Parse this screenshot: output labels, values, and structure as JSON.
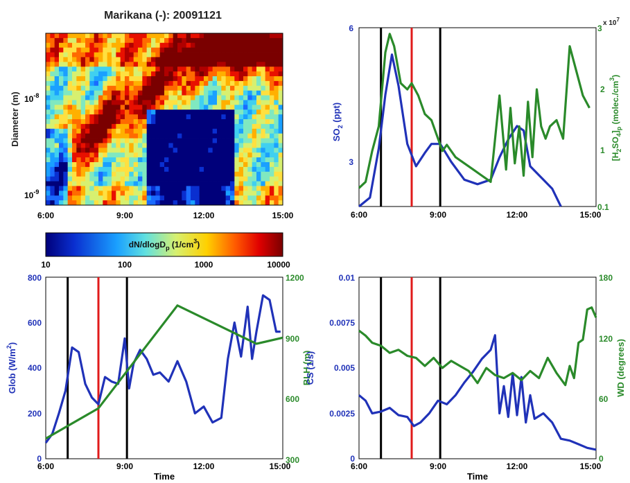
{
  "colors": {
    "blue": "#2032b8",
    "green": "#2a8a2a",
    "red": "#e01a1a",
    "black": "#000000"
  },
  "chart_data": [
    {
      "type": "heatmap",
      "title": "Marikana (-): 20091121",
      "ylabel": "Diameter (m)",
      "y_scale": "log",
      "y_ticks": [
        {
          "value": 1e-08,
          "label": "10",
          "exp": "-8"
        },
        {
          "value": 1e-09,
          "label": "10",
          "exp": "-9"
        }
      ],
      "x_ticks": [
        "6:00",
        "9:00",
        "12:00",
        "15:00"
      ],
      "colorbar": {
        "label_main": "dN/dlogD",
        "label_sub": "p",
        "label_unit": " (1/cm",
        "label_sup": "3",
        "label_end": ")",
        "scale": "log",
        "ticks": [
          "10",
          "100",
          "1000",
          "10000"
        ]
      }
    },
    {
      "type": "line",
      "left_axis": {
        "label": "SO",
        "sub": "2",
        "unit": " (ppt)",
        "ticks": [
          "6",
          "3"
        ],
        "range": [
          2,
          6
        ]
      },
      "right_axis": {
        "label_parts": [
          "[H",
          "2",
          "SO",
          "4",
          "]",
          "p",
          " (molec./cm",
          "3",
          ")"
        ],
        "ticks": [
          "0.1",
          "1",
          "2",
          "3"
        ],
        "multiplier": "x 10",
        "multiplier_exp": "7",
        "range": [
          0.1,
          3
        ]
      },
      "x_ticks": [
        "6:00",
        "9:00",
        "12:00",
        "15:00"
      ],
      "vlines": {
        "black": [
          "6:50",
          "9:05"
        ],
        "red": [
          "8:00"
        ]
      },
      "series": [
        {
          "axis": "left",
          "color": "blue",
          "x": [
            "6:00",
            "6:25",
            "6:45",
            "7:00",
            "7:15",
            "7:30",
            "7:50",
            "8:10",
            "8:30",
            "8:45",
            "9:05",
            "9:30",
            "10:00",
            "10:30",
            "11:00",
            "11:20",
            "11:40",
            "12:00",
            "12:15",
            "12:30",
            "13:00",
            "13:20",
            "13:40"
          ],
          "values": [
            2.0,
            2.2,
            3.3,
            4.5,
            5.4,
            4.7,
            3.4,
            2.9,
            3.2,
            3.4,
            3.4,
            3.0,
            2.6,
            2.5,
            2.6,
            3.1,
            3.5,
            3.8,
            3.7,
            2.9,
            2.6,
            2.4,
            2.0
          ]
        },
        {
          "axis": "right",
          "color": "green",
          "x": [
            "6:00",
            "6:15",
            "6:30",
            "6:45",
            "7:00",
            "7:10",
            "7:20",
            "7:35",
            "7:50",
            "8:00",
            "8:15",
            "8:30",
            "8:45",
            "9:00",
            "9:10",
            "9:20",
            "9:40",
            "10:00",
            "10:20",
            "10:40",
            "11:00",
            "11:20",
            "11:30",
            "11:35",
            "11:45",
            "11:55",
            "12:05",
            "12:15",
            "12:25",
            "12:35",
            "12:45",
            "12:55",
            "13:05",
            "13:15",
            "13:30",
            "13:45",
            "14:00",
            "14:15",
            "14:30",
            "14:45"
          ],
          "values": [
            0.4,
            0.5,
            1.0,
            1.4,
            2.6,
            2.9,
            2.7,
            2.1,
            2.0,
            2.1,
            1.9,
            1.6,
            1.5,
            1.2,
            1.0,
            1.1,
            0.9,
            0.8,
            0.7,
            0.6,
            0.5,
            1.9,
            1.1,
            0.7,
            1.7,
            0.8,
            1.4,
            0.6,
            1.8,
            0.9,
            2.0,
            1.4,
            1.2,
            1.4,
            1.5,
            1.2,
            2.7,
            2.3,
            1.9,
            1.7
          ]
        }
      ]
    },
    {
      "type": "line",
      "xlabel": "Time",
      "left_axis": {
        "label": "Glob (W/m",
        "sup": "2",
        "end": ")",
        "ticks": [
          "0",
          "200",
          "400",
          "600",
          "800"
        ],
        "range": [
          0,
          800
        ]
      },
      "right_axis": {
        "label": "BLH (m)",
        "ticks": [
          "300",
          "600",
          "900",
          "1200"
        ],
        "range": [
          300,
          1200
        ]
      },
      "x_ticks": [
        "6:00",
        "9:00",
        "12:00",
        "15:00"
      ],
      "vlines": {
        "black": [
          "6:50",
          "9:05"
        ],
        "red": [
          "8:00"
        ]
      },
      "series": [
        {
          "axis": "left",
          "color": "blue",
          "x": [
            "6:00",
            "6:15",
            "6:30",
            "6:45",
            "7:00",
            "7:15",
            "7:30",
            "7:45",
            "8:00",
            "8:15",
            "8:30",
            "8:45",
            "9:00",
            "9:10",
            "9:20",
            "9:35",
            "9:50",
            "10:05",
            "10:20",
            "10:40",
            "11:00",
            "11:20",
            "11:40",
            "12:00",
            "12:20",
            "12:40",
            "12:55",
            "13:10",
            "13:25",
            "13:40",
            "13:50",
            "14:00",
            "14:15",
            "14:30",
            "14:45",
            "14:55"
          ],
          "values": [
            70,
            110,
            200,
            300,
            490,
            470,
            330,
            270,
            240,
            360,
            340,
            330,
            530,
            310,
            420,
            480,
            440,
            370,
            380,
            340,
            430,
            340,
            200,
            230,
            160,
            180,
            440,
            600,
            450,
            670,
            440,
            560,
            720,
            700,
            560,
            560
          ]
        },
        {
          "axis": "right",
          "color": "green",
          "x": [
            "6:00",
            "8:00",
            "11:00",
            "14:00",
            "15:00"
          ],
          "values": [
            400,
            550,
            1060,
            870,
            900
          ]
        }
      ]
    },
    {
      "type": "line",
      "xlabel": "Time",
      "left_axis": {
        "label": "CS (1/s)",
        "ticks": [
          "0",
          "0.0025",
          "0.005",
          "0.0075",
          "0.01"
        ],
        "range": [
          0,
          0.01
        ]
      },
      "right_axis": {
        "label": "WD (degrees)",
        "ticks": [
          "0",
          "60",
          "120",
          "180"
        ],
        "range": [
          0,
          180
        ]
      },
      "x_ticks": [
        "6:00",
        "9:00",
        "12:00",
        "15:00"
      ],
      "vlines": {
        "black": [
          "6:50",
          "9:05"
        ],
        "red": [
          "8:00"
        ]
      },
      "series": [
        {
          "axis": "left",
          "color": "blue",
          "x": [
            "6:00",
            "6:15",
            "6:30",
            "6:50",
            "7:10",
            "7:30",
            "7:50",
            "8:05",
            "8:20",
            "8:40",
            "9:00",
            "9:20",
            "9:40",
            "10:00",
            "10:20",
            "10:40",
            "11:00",
            "11:10",
            "11:20",
            "11:30",
            "11:40",
            "11:50",
            "12:00",
            "12:10",
            "12:20",
            "12:30",
            "12:40",
            "13:00",
            "13:20",
            "13:40",
            "14:00",
            "14:20",
            "14:40",
            "15:00"
          ],
          "values": [
            0.0035,
            0.0032,
            0.0025,
            0.0026,
            0.0028,
            0.0024,
            0.0023,
            0.0018,
            0.002,
            0.0025,
            0.0032,
            0.003,
            0.0035,
            0.0042,
            0.0048,
            0.0055,
            0.006,
            0.0068,
            0.0025,
            0.004,
            0.0023,
            0.0047,
            0.0024,
            0.0045,
            0.002,
            0.0035,
            0.0022,
            0.0025,
            0.002,
            0.0011,
            0.001,
            0.0008,
            0.0006,
            0.0005
          ]
        },
        {
          "axis": "right",
          "color": "green",
          "x": [
            "6:00",
            "6:15",
            "6:30",
            "6:50",
            "7:10",
            "7:30",
            "7:50",
            "8:10",
            "8:30",
            "8:50",
            "9:10",
            "9:30",
            "9:50",
            "10:10",
            "10:30",
            "10:50",
            "11:10",
            "11:30",
            "11:50",
            "12:10",
            "12:30",
            "12:50",
            "13:10",
            "13:30",
            "13:50",
            "14:00",
            "14:10",
            "14:20",
            "14:30",
            "14:40",
            "14:50",
            "15:00"
          ],
          "values": [
            127,
            122,
            115,
            112,
            105,
            108,
            102,
            100,
            92,
            100,
            90,
            97,
            92,
            87,
            75,
            90,
            83,
            80,
            85,
            78,
            87,
            80,
            100,
            85,
            73,
            92,
            80,
            115,
            118,
            148,
            150,
            140
          ]
        }
      ]
    }
  ]
}
